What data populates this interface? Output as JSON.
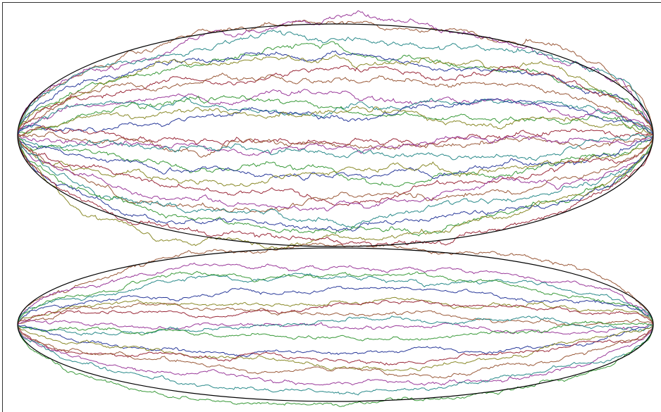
{
  "colors": [
    "#9a5a3a",
    "#9a3a9a",
    "#2a8a8a",
    "#3a9a3a",
    "#2a3a9a",
    "#8a8a2a",
    "#9a2a3a"
  ]
}
